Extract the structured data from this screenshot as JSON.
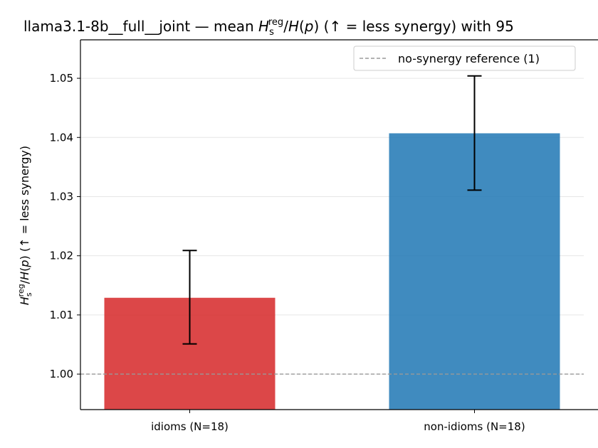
{
  "chart_data": {
    "type": "bar",
    "title_prefix": "llama3.1-8b__full__joint — mean ",
    "title_suffix": "  (↑ = less synergy) with 95",
    "ylabel_suffix": "  (↑ = less synergy)",
    "math": {
      "H": "H",
      "s": "s",
      "reg": "reg",
      "slash": "/",
      "Hp": "H",
      "p": "p",
      "lp": "(",
      "rp": ")"
    },
    "categories": [
      "idioms (N=18)",
      "non-idioms (N=18)"
    ],
    "values": [
      1.0129,
      1.0407
    ],
    "ci_low": [
      1.0051,
      1.0311
    ],
    "ci_high": [
      1.0209,
      1.0504
    ],
    "colors": [
      "#d62728",
      "#1f77b4"
    ],
    "ylim": [
      0.994,
      1.0565
    ],
    "yticks": [
      "1.00",
      "1.01",
      "1.02",
      "1.03",
      "1.04",
      "1.05"
    ],
    "ytick_values": [
      1.0,
      1.01,
      1.02,
      1.03,
      1.04,
      1.05
    ],
    "reference": {
      "value": 1.0,
      "label": "no-synergy reference (1)",
      "color": "#999999"
    },
    "grid": true,
    "legend_position": "top-right"
  }
}
